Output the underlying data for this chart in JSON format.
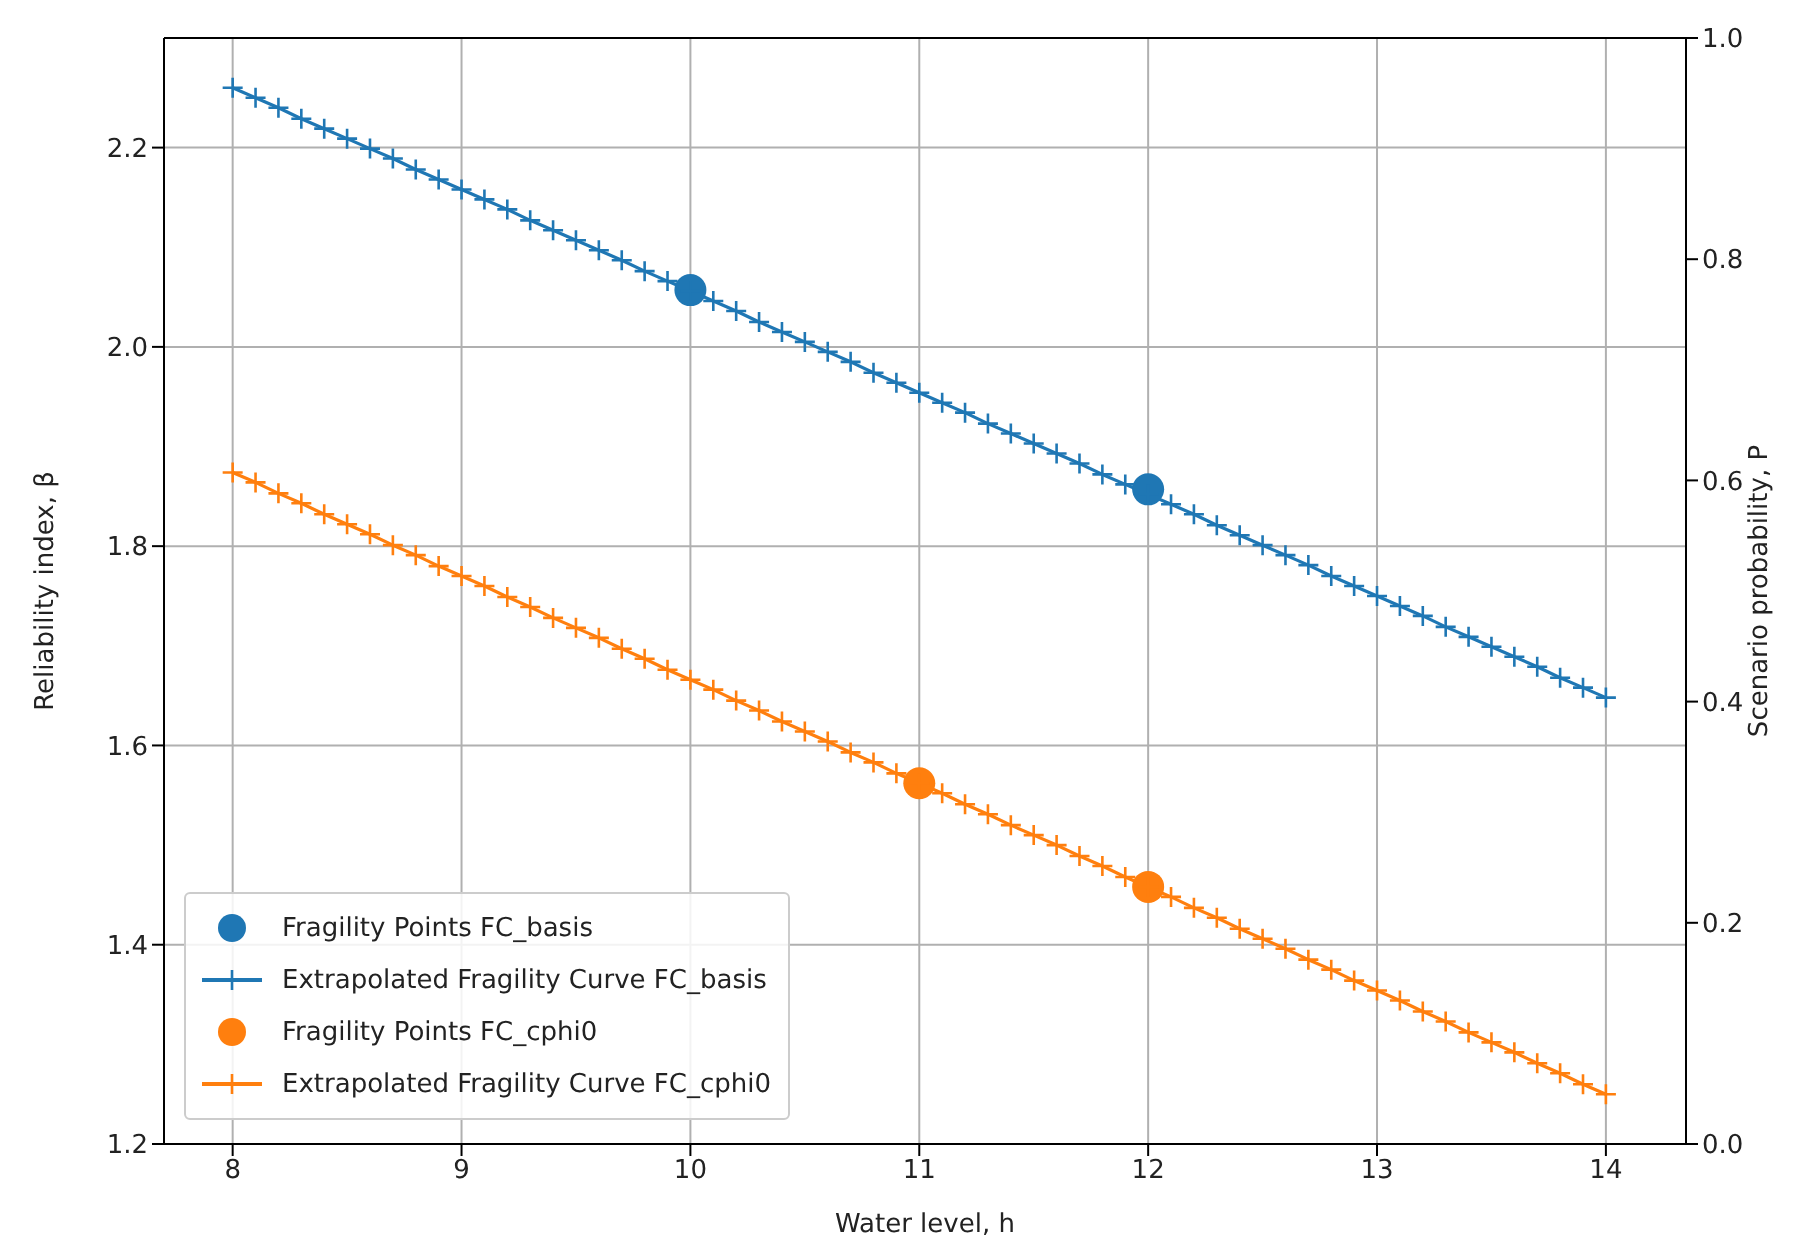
{
  "chart_data": {
    "type": "line",
    "xlabel": "Water level, h",
    "ylabel": "Reliability index, β",
    "y2label": "Scenario probability, P",
    "xlim": [
      7.7,
      14.35
    ],
    "xticks": [
      8,
      9,
      10,
      11,
      12,
      13,
      14
    ],
    "ylim": [
      1.2,
      2.31
    ],
    "yticks": [
      1.2,
      1.4,
      1.6,
      1.8,
      {
        "value": 2,
        "label": "2.0"
      },
      2.2
    ],
    "y2lim": [
      0,
      1
    ],
    "y2ticks": [
      {
        "value": 0,
        "label": "0.0"
      },
      0.2,
      0.4,
      0.6,
      0.8,
      {
        "value": 1,
        "label": "1.0"
      }
    ],
    "grid": true,
    "legend": "bottom left",
    "series": [
      {
        "name": "Fragility Points FC_basis",
        "type": "scatter",
        "marker": "circle",
        "color": "#1f77b4",
        "x": [
          10,
          12
        ],
        "values": [
          2.057,
          1.857
        ]
      },
      {
        "name": "Extrapolated Fragility Curve FC_basis",
        "marker": "cross",
        "color": "#1f77b4",
        "x": [
          8,
          8.1,
          8.2,
          8.3,
          8.4,
          8.5,
          8.6,
          8.7,
          8.8,
          8.9,
          9,
          9.1,
          9.2,
          9.3,
          9.4,
          9.5,
          9.6,
          9.7,
          9.8,
          9.9,
          10,
          10.1,
          10.2,
          10.3,
          10.4,
          10.5,
          10.6,
          10.7,
          10.8,
          10.9,
          11,
          11.1,
          11.2,
          11.3,
          11.4,
          11.5,
          11.6,
          11.7,
          11.8,
          11.9,
          12,
          12.1,
          12.2,
          12.3,
          12.4,
          12.5,
          12.6,
          12.7,
          12.8,
          12.9,
          13,
          13.1,
          13.2,
          13.3,
          13.4,
          13.5,
          13.6,
          13.7,
          13.8,
          13.9,
          14
        ],
        "values": [
          2.26,
          2.25,
          2.24,
          2.229,
          2.219,
          2.209,
          2.199,
          2.189,
          2.178,
          2.168,
          2.158,
          2.148,
          2.138,
          2.127,
          2.117,
          2.107,
          2.097,
          2.087,
          2.076,
          2.066,
          2.056,
          2.046,
          2.036,
          2.025,
          2.015,
          2.005,
          1.995,
          1.985,
          1.974,
          1.964,
          1.954,
          1.944,
          1.934,
          1.923,
          1.913,
          1.903,
          1.893,
          1.883,
          1.872,
          1.862,
          1.852,
          1.842,
          1.832,
          1.821,
          1.811,
          1.801,
          1.791,
          1.781,
          1.77,
          1.76,
          1.75,
          1.74,
          1.73,
          1.719,
          1.709,
          1.699,
          1.689,
          1.679,
          1.668,
          1.658,
          1.648
        ]
      },
      {
        "name": "Fragility Points FC_cphi0",
        "type": "scatter",
        "marker": "circle",
        "color": "#ff7f0e",
        "x": [
          11,
          12
        ],
        "values": [
          1.562,
          1.458
        ]
      },
      {
        "name": "Extrapolated Fragility Curve FC_cphi0",
        "marker": "cross",
        "color": "#ff7f0e",
        "x": [
          8,
          8.1,
          8.2,
          8.3,
          8.4,
          8.5,
          8.6,
          8.7,
          8.8,
          8.9,
          9,
          9.1,
          9.2,
          9.3,
          9.4,
          9.5,
          9.6,
          9.7,
          9.8,
          9.9,
          10,
          10.1,
          10.2,
          10.3,
          10.4,
          10.5,
          10.6,
          10.7,
          10.8,
          10.9,
          11,
          11.1,
          11.2,
          11.3,
          11.4,
          11.5,
          11.6,
          11.7,
          11.8,
          11.9,
          12,
          12.1,
          12.2,
          12.3,
          12.4,
          12.5,
          12.6,
          12.7,
          12.8,
          12.9,
          13,
          13.1,
          13.2,
          13.3,
          13.4,
          13.5,
          13.6,
          13.7,
          13.8,
          13.9,
          14
        ],
        "values": [
          1.874,
          1.864,
          1.853,
          1.843,
          1.832,
          1.822,
          1.812,
          1.801,
          1.791,
          1.78,
          1.77,
          1.76,
          1.749,
          1.739,
          1.728,
          1.718,
          1.708,
          1.697,
          1.687,
          1.676,
          1.666,
          1.656,
          1.645,
          1.635,
          1.624,
          1.614,
          1.604,
          1.593,
          1.583,
          1.572,
          1.562,
          1.552,
          1.541,
          1.531,
          1.52,
          1.51,
          1.5,
          1.489,
          1.479,
          1.468,
          1.458,
          1.448,
          1.437,
          1.427,
          1.416,
          1.406,
          1.396,
          1.385,
          1.375,
          1.364,
          1.354,
          1.344,
          1.333,
          1.323,
          1.312,
          1.302,
          1.292,
          1.281,
          1.271,
          1.26,
          1.25
        ]
      }
    ]
  }
}
